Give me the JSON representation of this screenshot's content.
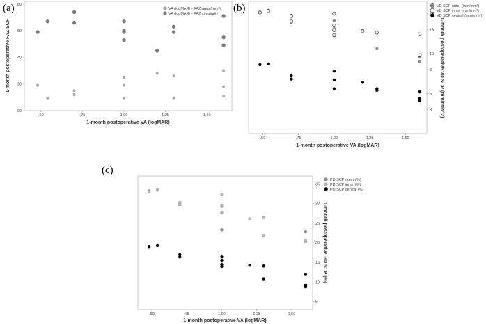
{
  "panels": [
    {
      "label": "(a)"
    },
    {
      "label": "(b)"
    },
    {
      "label": "(c)"
    }
  ],
  "chart_data": [
    {
      "type": "scatter",
      "panel": "(a)",
      "xlabel": "1-month postoperative VA (logMAR)",
      "ylabel": "1-month postoperative FAZ SCP",
      "xlim": [
        0.4,
        1.65
      ],
      "ylim": [
        0.0,
        0.82
      ],
      "xticks": [
        0.5,
        0.75,
        1.0,
        1.25,
        1.5
      ],
      "xtick_labels": [
        ",50",
        ",75",
        "1,00",
        "1,25",
        "1,50"
      ],
      "yticks": [
        0.0,
        0.2,
        0.4,
        0.6,
        0.8
      ],
      "ytick_labels": [
        ",00",
        ",20",
        ",40",
        ",60",
        ",80"
      ],
      "legend_position": "top-right",
      "series": [
        {
          "name": "VA (logMAR) - FAZ area (mm²)",
          "color": "#a6a6a6",
          "size": 2,
          "x": [
            0.48,
            0.54,
            0.7,
            0.7,
            1.0,
            1.0,
            1.0,
            1.2,
            1.3,
            1.3,
            1.6,
            1.6,
            1.6
          ],
          "y": [
            0.19,
            0.09,
            0.15,
            0.12,
            0.25,
            0.19,
            0.09,
            0.28,
            0.26,
            0.09,
            0.3,
            0.18,
            0.11
          ]
        },
        {
          "name": "VA (logMAR) - FAZ circularity",
          "color": "#7f7f7f",
          "size": 2.7,
          "x": [
            0.48,
            0.54,
            0.7,
            0.7,
            1.0,
            1.0,
            1.0,
            1.0,
            1.2,
            1.3,
            1.3,
            1.6,
            1.6,
            1.6
          ],
          "y": [
            0.59,
            0.67,
            0.74,
            0.66,
            0.67,
            0.6,
            0.59,
            0.53,
            0.45,
            0.63,
            0.59,
            0.71,
            0.55,
            0.49
          ]
        }
      ]
    },
    {
      "type": "scatter",
      "panel": "(b)",
      "xlabel": "1-month postoperative VA (logMAR)",
      "ylabel": "1-month postoperative VD SCP (mm/mm^2)",
      "xlim": [
        0.4,
        1.65
      ],
      "ylim": [
        0,
        16.5
      ],
      "xticks": [
        0.5,
        0.75,
        1.0,
        1.25,
        1.5
      ],
      "xtick_labels": [
        ",50",
        ",75",
        "1,00",
        "1,25",
        "1,50"
      ],
      "yticks": [
        3,
        5,
        8,
        10,
        13,
        15
      ],
      "ytick_labels": [
        "3",
        "5",
        "8",
        "10",
        "13",
        "15"
      ],
      "legend_position": "top-right",
      "series": [
        {
          "name": "VD SCP outer (mm/mm²)",
          "color": "#8c8c8c",
          "marker": "filled",
          "x": [
            0.48,
            0.54,
            0.7,
            0.7,
            1.0,
            1.0,
            1.0,
            1.0,
            1.2,
            1.3,
            1.6,
            1.6
          ],
          "y": [
            15.2,
            15.4,
            14.6,
            13.9,
            14.9,
            14.1,
            13.1,
            12.2,
            12.9,
            10.6,
            9.6,
            9.0
          ]
        },
        {
          "name": "VD SCP inner (mm/mm²)",
          "color": "#ffffff",
          "marker": "open",
          "x": [
            0.48,
            0.54,
            0.7,
            0.7,
            1.0,
            1.0,
            1.0,
            1.0,
            1.2,
            1.3,
            1.6,
            1.6
          ],
          "y": [
            15.1,
            15.3,
            14.7,
            14.0,
            15.0,
            13.5,
            12.9,
            12.3,
            12.8,
            12.6,
            12.4,
            9.8
          ]
        },
        {
          "name": "VD SCP central (mm/mm²)",
          "color": "#000000",
          "marker": "filled",
          "x": [
            0.48,
            0.54,
            0.7,
            0.7,
            1.0,
            1.0,
            1.0,
            1.2,
            1.3,
            1.3,
            1.6,
            1.6,
            1.6
          ],
          "y": [
            8.6,
            8.7,
            7.2,
            6.8,
            7.8,
            6.7,
            5.6,
            6.4,
            5.6,
            5.4,
            5.2,
            4.4,
            4.1
          ]
        }
      ]
    },
    {
      "type": "scatter",
      "panel": "(c)",
      "xlabel": "1-month postoperative VA (logMAR)",
      "ylabel": "1-month postoperative PD SCP (%)",
      "xlim": [
        0.4,
        1.65
      ],
      "ylim": [
        3,
        37
      ],
      "xticks": [
        0.5,
        0.75,
        1.0,
        1.25,
        1.5
      ],
      "xtick_labels": [
        ",50",
        ",75",
        "1,00",
        "1,25",
        "1,50"
      ],
      "yticks": [
        5,
        10,
        15,
        20,
        25,
        30,
        35
      ],
      "ytick_labels": [
        "5",
        "10",
        "15",
        "20",
        "25",
        "30",
        "35"
      ],
      "legend_position": "top-right",
      "series": [
        {
          "name": "PD SCP outer (%)",
          "color": "#8c8c8c",
          "marker": "filled",
          "x": [
            0.48,
            0.54,
            0.7,
            0.7,
            1.0,
            1.0,
            1.0,
            1.2,
            1.3,
            1.3,
            1.6,
            1.6
          ],
          "y": [
            33.2,
            33.5,
            30.0,
            29.6,
            29.3,
            27.6,
            23.3,
            26.1,
            26.5,
            21.8,
            22.8,
            20.3
          ]
        },
        {
          "name": "PD SCP inner (%)",
          "color": "#b4b4b4",
          "marker": "filled",
          "x": [
            0.48,
            0.54,
            0.7,
            0.7,
            1.0,
            1.0,
            1.0,
            1.2,
            1.3,
            1.3,
            1.6,
            1.6
          ],
          "y": [
            33.0,
            33.4,
            30.3,
            29.8,
            32.2,
            29.5,
            27.7,
            26.0,
            26.4,
            21.9,
            20.6,
            20.4
          ]
        },
        {
          "name": "PD SCP central (%)",
          "color": "#000000",
          "marker": "filled",
          "x": [
            0.48,
            0.54,
            0.7,
            0.7,
            1.0,
            1.0,
            1.0,
            1.0,
            1.2,
            1.3,
            1.3,
            1.6,
            1.6,
            1.6
          ],
          "y": [
            18.9,
            19.3,
            17.0,
            16.4,
            16.4,
            15.4,
            14.5,
            14.0,
            14.3,
            14.1,
            10.7,
            11.9,
            9.2,
            8.8
          ]
        }
      ]
    }
  ]
}
